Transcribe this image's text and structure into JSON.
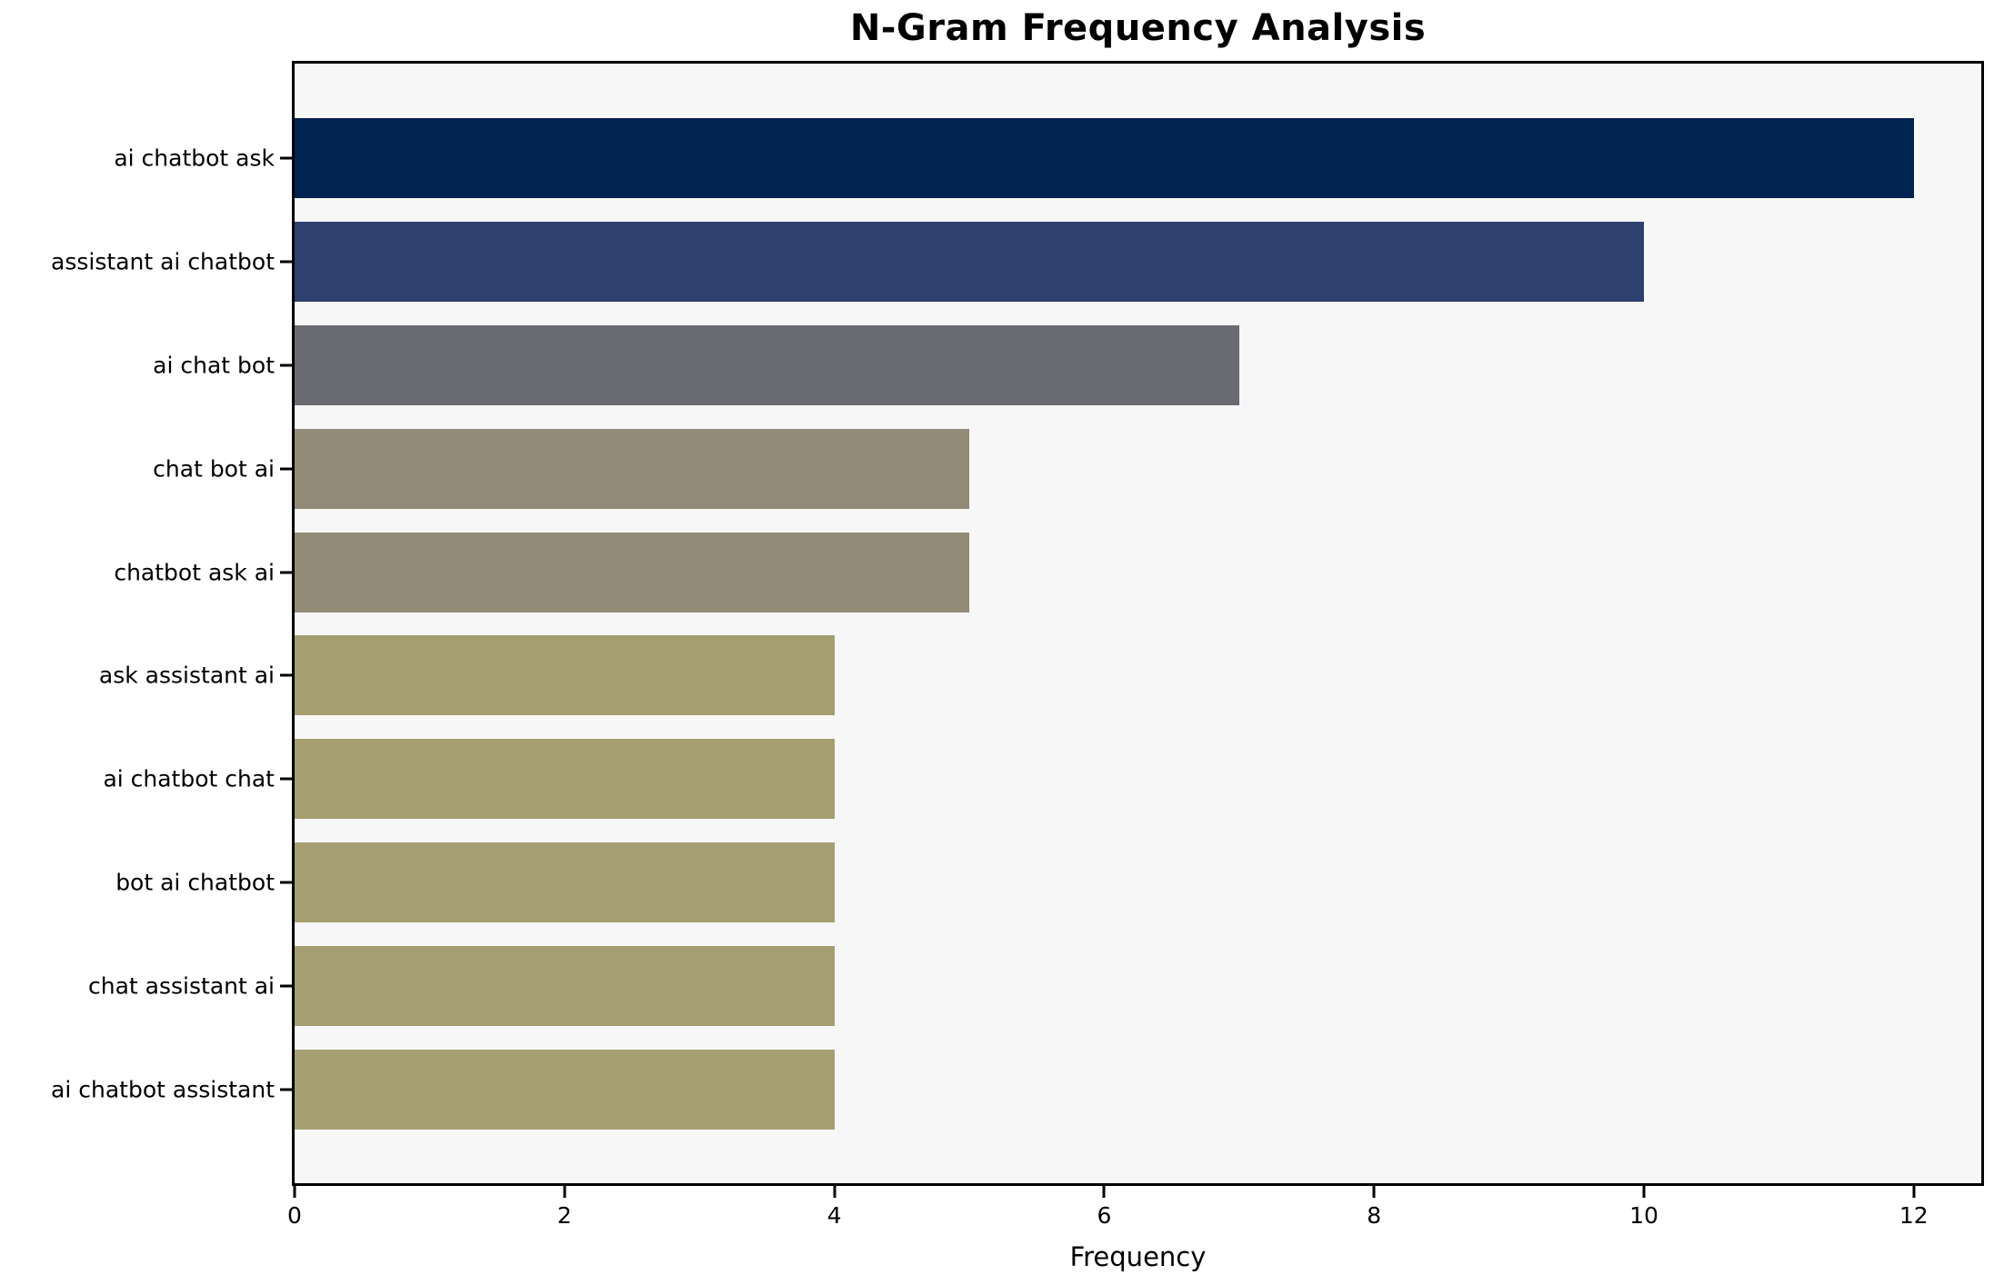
{
  "chart_data": {
    "type": "bar",
    "orientation": "horizontal",
    "title": "N-Gram Frequency Analysis",
    "xlabel": "Frequency",
    "ylabel": "",
    "categories": [
      "ai chatbot ask",
      "assistant ai chatbot",
      "ai chat bot",
      "chat bot ai",
      "chatbot ask ai",
      "ask assistant ai",
      "ai chatbot chat",
      "bot ai chatbot",
      "chat assistant ai",
      "ai chatbot assistant"
    ],
    "values": [
      12,
      10,
      7,
      5,
      5,
      4,
      4,
      4,
      4,
      4
    ],
    "bar_colors": [
      "#00234f",
      "#2d406e",
      "#696b71",
      "#918b77",
      "#918b77",
      "#a49e71",
      "#a49e71",
      "#a59e72",
      "#a59e72",
      "#a69f72"
    ],
    "xlim": [
      0,
      12.5
    ],
    "xticks": [
      0,
      2,
      4,
      6,
      8,
      10,
      12
    ],
    "grid": false,
    "legend_position": "none",
    "plot_bg": "#f7f7f7",
    "figure_bg": "#ffffff",
    "spine_color": "#000000",
    "text_color": "#000000"
  }
}
